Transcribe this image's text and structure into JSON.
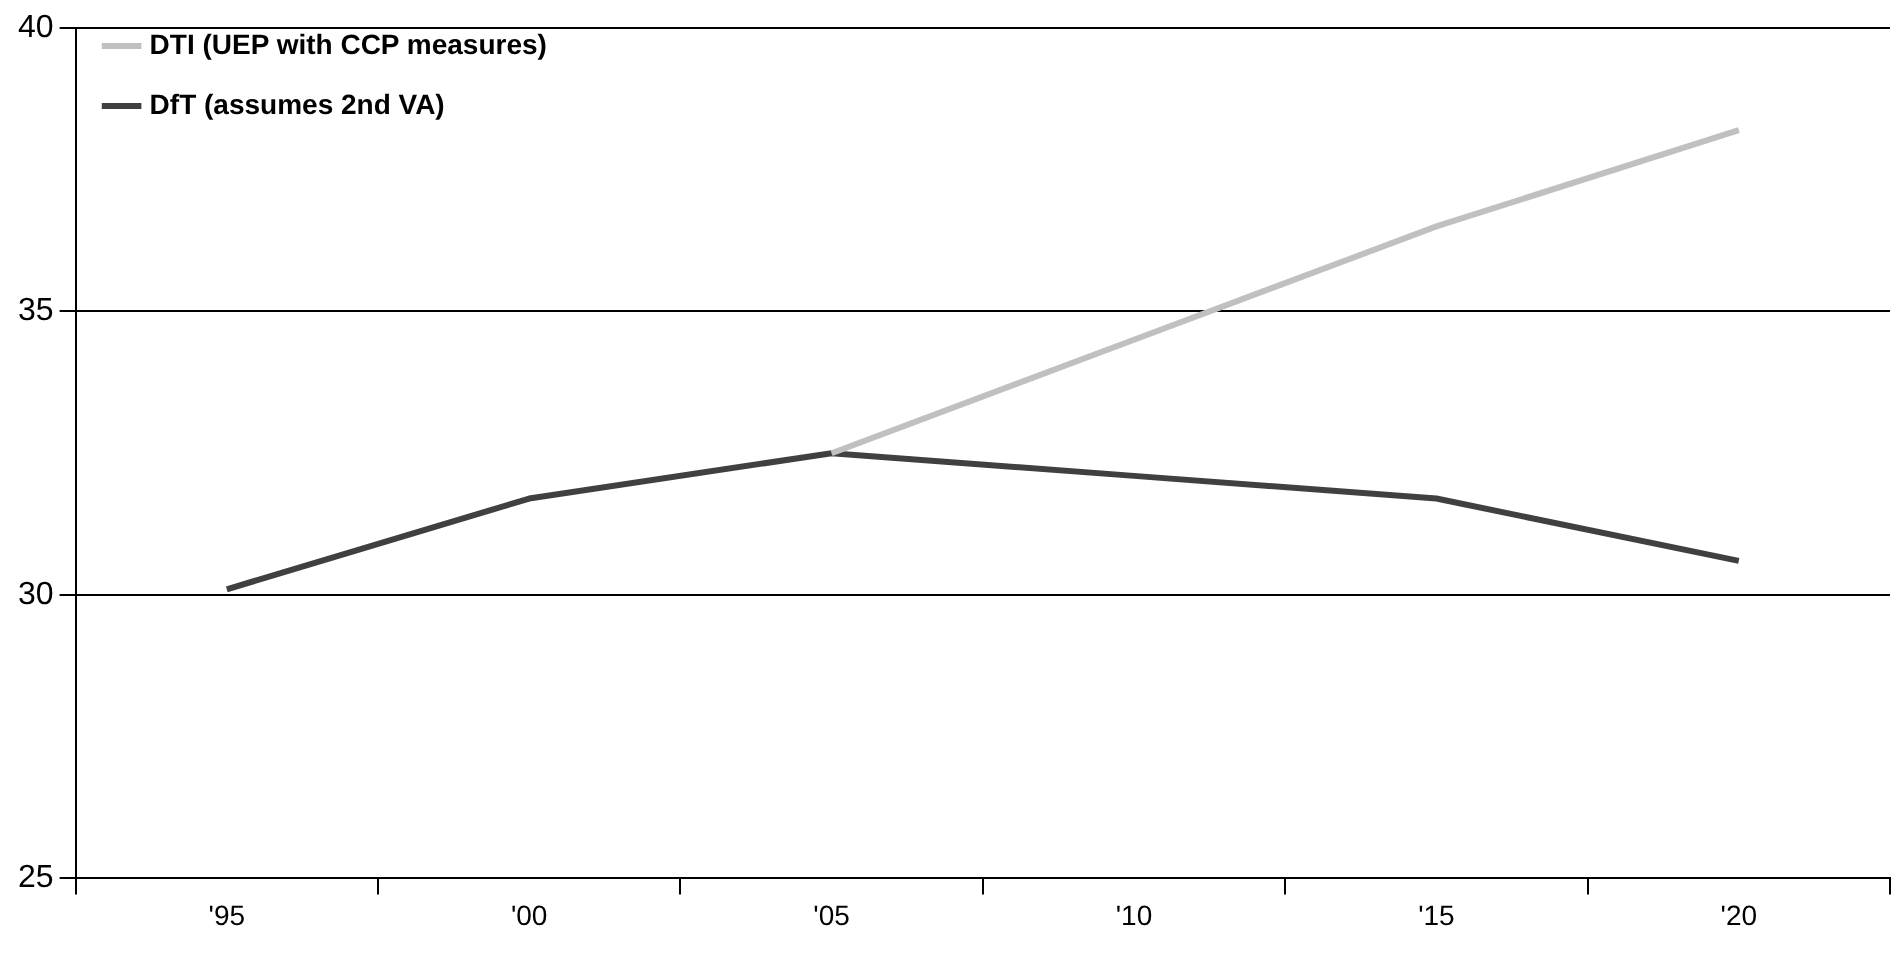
{
  "chart_data": {
    "type": "line",
    "categories": [
      "'95",
      "'00",
      "'05",
      "'10",
      "'15",
      "'20"
    ],
    "series": [
      {
        "name": "DTI (UEP with CCP measures)",
        "color": "#c0c0c0",
        "values": [
          null,
          null,
          32.5,
          34.5,
          36.5,
          38.2
        ]
      },
      {
        "name": "DfT (assumes 2nd VA)",
        "color": "#404040",
        "values": [
          30.1,
          31.7,
          32.5,
          32.1,
          31.7,
          30.6
        ]
      }
    ],
    "ylim": [
      25,
      40
    ],
    "yticks": [
      25,
      30,
      35,
      40
    ],
    "grid": "y",
    "legend": "top left",
    "marker": "none",
    "line_style": "solid"
  }
}
